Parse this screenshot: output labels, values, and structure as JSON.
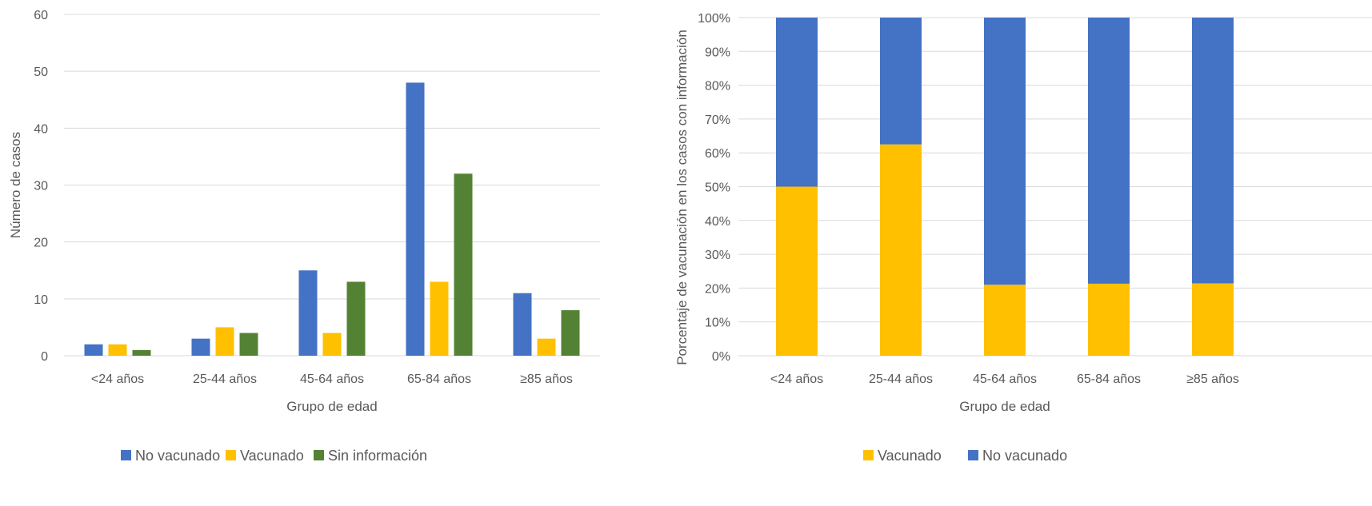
{
  "chart_data": [
    {
      "type": "bar",
      "categories": [
        "<24 años",
        "25-44 años",
        "45-64 años",
        "65-84 años",
        "≥85 años"
      ],
      "series": [
        {
          "name": "No vacunado",
          "color": "#4472C4",
          "values": [
            2,
            3,
            15,
            48,
            11
          ]
        },
        {
          "name": "Vacunado",
          "color": "#FFC000",
          "values": [
            2,
            5,
            4,
            13,
            3
          ]
        },
        {
          "name": "Sin información",
          "color": "#548235",
          "values": [
            1,
            4,
            13,
            32,
            8
          ]
        }
      ],
      "title": "",
      "xlabel": "Grupo de edad",
      "ylabel": "Número de casos",
      "ylim": [
        0,
        60
      ],
      "yticks": [
        0,
        10,
        20,
        30,
        40,
        50,
        60
      ],
      "grid": true,
      "legend_position": "bottom"
    },
    {
      "type": "bar",
      "stacked": true,
      "percent": true,
      "categories": [
        "<24 años",
        "25-44 años",
        "45-64 años",
        "65-84 años",
        "≥85 años"
      ],
      "series": [
        {
          "name": "Vacunado",
          "color": "#FFC000",
          "values": [
            50,
            62.5,
            21,
            21.3,
            21.4
          ]
        },
        {
          "name": "No vacunado",
          "color": "#4472C4",
          "values": [
            50,
            37.5,
            79,
            78.7,
            78.6
          ]
        }
      ],
      "title": "",
      "xlabel": "Grupo de edad",
      "ylabel": "Porcentaje de vacunación en los casos con información",
      "ylim": [
        0,
        100
      ],
      "yticks": [
        "0%",
        "10%",
        "20%",
        "30%",
        "40%",
        "50%",
        "60%",
        "70%",
        "80%",
        "90%",
        "100%"
      ],
      "grid": true,
      "legend_position": "bottom"
    }
  ]
}
